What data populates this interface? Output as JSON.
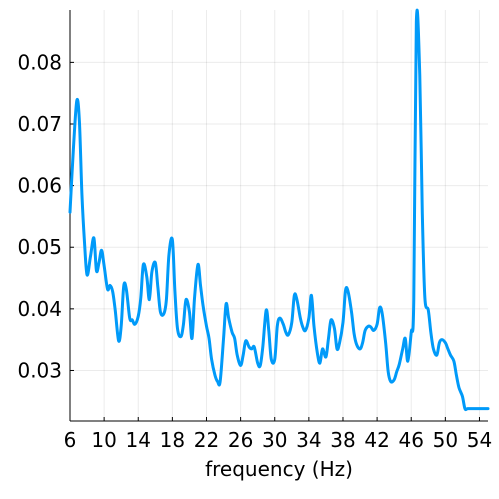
{
  "chart_data": {
    "type": "line",
    "title": "",
    "xlabel": "frequency (Hz)",
    "ylabel": "",
    "xlim": [
      6,
      55
    ],
    "ylim": [
      0.0218,
      0.0885
    ],
    "x_ticks": [
      6,
      10,
      14,
      18,
      22,
      26,
      30,
      34,
      38,
      42,
      46,
      50,
      54
    ],
    "y_ticks": [
      0.03,
      0.04,
      0.05,
      0.06,
      0.07,
      0.08
    ],
    "y_tick_labels": [
      "0.03",
      "0.04",
      "0.05",
      "0.06",
      "0.07",
      "0.08"
    ],
    "grid": true,
    "legend": "none",
    "series": [
      {
        "color": "#009af9",
        "x": [
          6,
          6.4,
          6.8,
          7.1,
          7.4,
          7.7,
          8.0,
          8.4,
          8.8,
          9.1,
          9.4,
          9.7,
          10.0,
          10.4,
          10.7,
          11.0,
          11.3,
          11.7,
          12.0,
          12.3,
          12.6,
          13.0,
          13.3,
          13.6,
          14.0,
          14.3,
          14.6,
          15.0,
          15.3,
          15.6,
          16.0,
          16.3,
          16.6,
          17.0,
          17.3,
          17.6,
          18.0,
          18.3,
          18.6,
          19.0,
          19.3,
          19.6,
          20.0,
          20.3,
          20.6,
          21.0,
          21.3,
          21.6,
          22.0,
          22.3,
          22.6,
          23.0,
          23.3,
          23.6,
          24.0,
          24.3,
          24.6,
          25.0,
          25.3,
          25.6,
          26.0,
          26.3,
          26.6,
          27.0,
          27.3,
          27.6,
          28.0,
          28.3,
          28.6,
          29.0,
          29.3,
          29.6,
          30.0,
          30.3,
          30.6,
          31.0,
          31.3,
          31.6,
          32.0,
          32.3,
          32.6,
          33.0,
          33.3,
          33.6,
          34.0,
          34.3,
          34.6,
          35.0,
          35.3,
          35.6,
          36.0,
          36.3,
          36.6,
          37.0,
          37.3,
          37.6,
          38.0,
          38.3,
          38.6,
          39.0,
          39.3,
          39.6,
          40.0,
          40.3,
          40.6,
          41.0,
          41.3,
          41.6,
          42.0,
          42.3,
          42.6,
          43.0,
          43.3,
          43.6,
          44.0,
          44.3,
          44.6,
          45.0,
          45.3,
          45.6,
          46.0,
          46.3,
          46.6,
          47.0,
          47.3,
          47.6,
          48.0,
          48.3,
          48.6,
          49.0,
          49.3,
          49.6,
          50.0,
          50.3,
          50.6,
          51.0,
          51.3,
          51.6,
          52.0,
          52.3,
          52.6,
          53.0,
          53.3,
          53.6,
          54.0,
          54.3,
          54.6,
          55.0
        ],
        "y": [
          0.0557,
          0.066,
          0.0738,
          0.0705,
          0.0585,
          0.0508,
          0.0455,
          0.0485,
          0.0515,
          0.0462,
          0.0475,
          0.0495,
          0.047,
          0.0432,
          0.0438,
          0.0428,
          0.0398,
          0.0348,
          0.0372,
          0.0437,
          0.0432,
          0.0385,
          0.0382,
          0.0375,
          0.0388,
          0.0418,
          0.0472,
          0.0452,
          0.0415,
          0.046,
          0.0475,
          0.0435,
          0.0395,
          0.0392,
          0.0415,
          0.0488,
          0.0512,
          0.0428,
          0.0368,
          0.0355,
          0.0375,
          0.0415,
          0.0395,
          0.0352,
          0.0418,
          0.0472,
          0.0438,
          0.0405,
          0.0372,
          0.0352,
          0.0318,
          0.0292,
          0.0282,
          0.0282,
          0.0352,
          0.0408,
          0.0385,
          0.0362,
          0.0352,
          0.0325,
          0.0308,
          0.0325,
          0.0348,
          0.0338,
          0.0335,
          0.0338,
          0.0312,
          0.0308,
          0.0338,
          0.0398,
          0.0365,
          0.0318,
          0.0318,
          0.0372,
          0.0385,
          0.0375,
          0.0362,
          0.0358,
          0.0378,
          0.0422,
          0.0415,
          0.0385,
          0.037,
          0.0365,
          0.0385,
          0.0422,
          0.0372,
          0.0328,
          0.0312,
          0.0335,
          0.0322,
          0.0352,
          0.0382,
          0.0368,
          0.0335,
          0.0345,
          0.0378,
          0.043,
          0.0428,
          0.0395,
          0.036,
          0.0342,
          0.0335,
          0.0345,
          0.0365,
          0.0372,
          0.037,
          0.0365,
          0.0375,
          0.0402,
          0.0392,
          0.0345,
          0.0298,
          0.0282,
          0.0285,
          0.0298,
          0.031,
          0.0335,
          0.0352,
          0.0315,
          0.0362,
          0.0415,
          0.0865,
          0.078,
          0.0555,
          0.0418,
          0.0398,
          0.0362,
          0.0335,
          0.0325,
          0.0345,
          0.035,
          0.0345,
          0.0335,
          0.0325,
          0.0315,
          0.0292,
          0.0272,
          0.0258,
          0.0238,
          0.0238,
          0.0238,
          0.0238,
          0.0238,
          0.0238,
          0.0238,
          0.0238,
          0.0238
        ]
      }
    ]
  }
}
